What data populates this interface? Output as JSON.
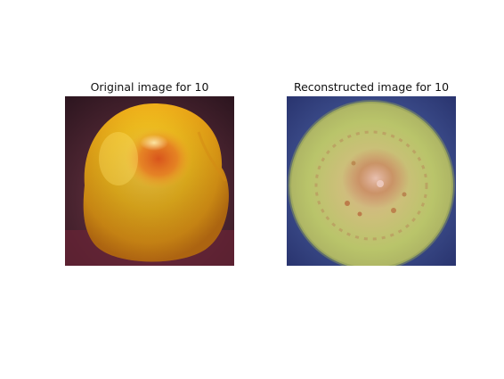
{
  "panels": [
    {
      "title": "Original image for 10"
    },
    {
      "title": "Reconstructed image for 10"
    }
  ]
}
